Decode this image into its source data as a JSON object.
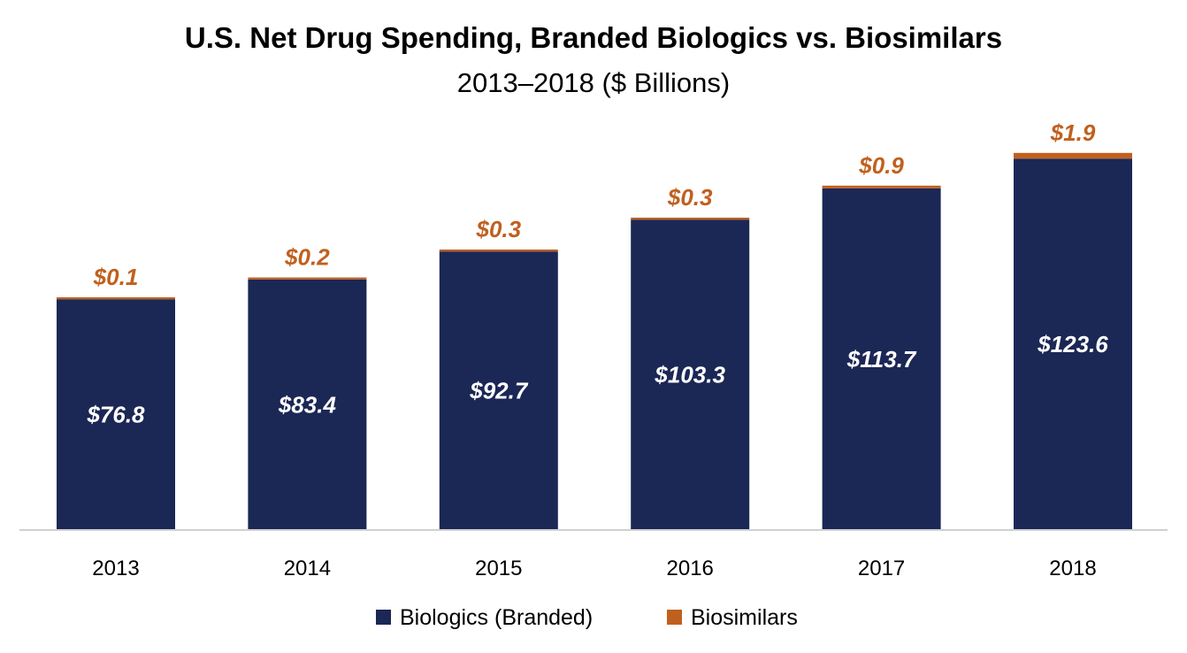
{
  "chart_data": {
    "type": "bar",
    "stacked": true,
    "title": "U.S. Net Drug Spending, Branded Biologics vs. Biosimilars",
    "subtitle": "2013–2018 ($ Billions)",
    "xlabel": "",
    "ylabel": "",
    "ylim": [
      0,
      130
    ],
    "grid": false,
    "legend_position": "bottom",
    "categories": [
      "2013",
      "2014",
      "2015",
      "2016",
      "2017",
      "2018"
    ],
    "series": [
      {
        "name": "Biologics (Branded)",
        "color": "#1b2755",
        "values": [
          76.8,
          83.4,
          92.7,
          103.3,
          113.7,
          123.6
        ],
        "labels": [
          "$76.8",
          "$83.4",
          "$92.7",
          "$103.3",
          "$113.7",
          "$123.6"
        ]
      },
      {
        "name": "Biosimilars",
        "color": "#c0601f",
        "values": [
          0.1,
          0.2,
          0.3,
          0.3,
          0.9,
          1.9
        ],
        "labels": [
          "$0.1",
          "$0.2",
          "$0.3",
          "$0.3",
          "$0.9",
          "$1.9"
        ]
      }
    ]
  }
}
